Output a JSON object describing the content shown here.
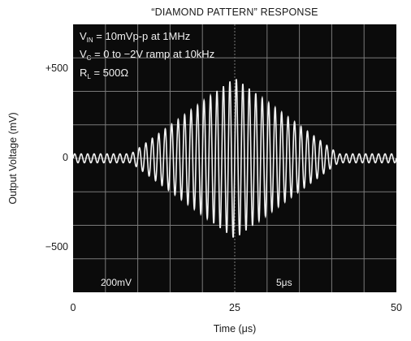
{
  "chart_data": {
    "type": "line",
    "title": "“DIAMOND PATTERN” RESPONSE",
    "xlabel": "Time (μs)",
    "ylabel": "Output Voltage (mV)",
    "xlim": [
      0,
      50
    ],
    "ylim": [
      -750,
      750
    ],
    "x_ticks": [
      {
        "value": 0,
        "label": "0"
      },
      {
        "value": 25,
        "label": "25"
      },
      {
        "value": 50,
        "label": "50"
      }
    ],
    "y_ticks": [
      {
        "value": 500,
        "label": "+500"
      },
      {
        "value": 0,
        "label": "0"
      },
      {
        "value": -500,
        "label": "−500"
      }
    ],
    "grid": true,
    "annotations": {
      "line1_main": "V",
      "line1_sub": "IN",
      "line1_rest": " = 10mVp-p at 1MHz",
      "line2_main": "V",
      "line2_sub": "C",
      "line2_rest": " = 0 to −2V ramp at 10kHz",
      "line3_main": "R",
      "line3_sub": "L",
      "line3_rest": " = 500Ω",
      "scale_v": "200mV",
      "scale_t": "5μs"
    },
    "series": [
      {
        "envelope_peak_mV": 450,
        "envelope_baseline_mV": 25,
        "envelope_center_us": 25,
        "envelope_half_width_us": 17,
        "oscillation_frequency_MHz": 1,
        "color": "#ffffff"
      }
    ],
    "colors": {
      "screen": "#0b0b0b",
      "grid": "#7a7a7a",
      "trace": "#f2f2f2",
      "text_on_screen": "#f0f0f0"
    }
  }
}
